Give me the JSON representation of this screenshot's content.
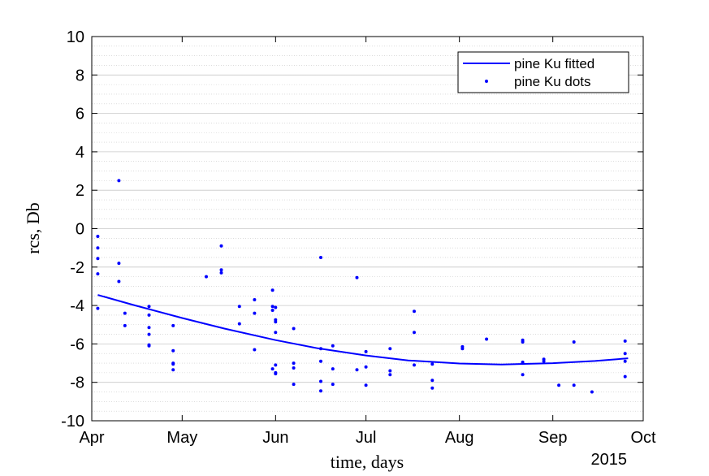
{
  "chart_data": {
    "type": "scatter",
    "xlabel": "time, days",
    "ylabel": "rcs, Db",
    "year_label": "2015",
    "x_ticks": [
      "Apr",
      "May",
      "Jun",
      "Jul",
      "Aug",
      "Sep",
      "Oct"
    ],
    "x_tick_dates": [
      "2015-04-01",
      "2015-05-01",
      "2015-06-01",
      "2015-07-01",
      "2015-08-01",
      "2015-09-01",
      "2015-10-01"
    ],
    "xlim": [
      "2015-04-01",
      "2015-10-01"
    ],
    "y_ticks": [
      "10",
      "8",
      "6",
      "4",
      "2",
      "0",
      "-2",
      "-4",
      "-6",
      "-8",
      "-10"
    ],
    "ylim": [
      -10,
      10
    ],
    "grid": "major and minor on y-axis",
    "legend_position": "top-right",
    "colors": {
      "series": "#0000ff",
      "axis": "#000000",
      "grid": "#c8c8c8"
    },
    "series": [
      {
        "name": "pine Ku fitted",
        "kind": "line",
        "x": [
          "2015-04-03",
          "2015-04-15",
          "2015-05-01",
          "2015-05-15",
          "2015-06-01",
          "2015-06-15",
          "2015-07-01",
          "2015-07-15",
          "2015-08-01",
          "2015-08-15",
          "2015-09-01",
          "2015-09-15",
          "2015-09-26"
        ],
        "y": [
          -3.45,
          -3.98,
          -4.65,
          -5.2,
          -5.8,
          -6.23,
          -6.6,
          -6.86,
          -7.02,
          -7.07,
          -7.0,
          -6.89,
          -6.75
        ]
      },
      {
        "name": "pine Ku dots",
        "kind": "scatter",
        "x": [
          "2015-04-03",
          "2015-04-03",
          "2015-04-03",
          "2015-04-03",
          "2015-04-03",
          "2015-04-10",
          "2015-04-10",
          "2015-04-10",
          "2015-04-12",
          "2015-04-12",
          "2015-04-20",
          "2015-04-20",
          "2015-04-20",
          "2015-04-20",
          "2015-04-20",
          "2015-04-20",
          "2015-04-28",
          "2015-04-28",
          "2015-04-28",
          "2015-04-28",
          "2015-04-28",
          "2015-05-09",
          "2015-05-14",
          "2015-05-14",
          "2015-05-14",
          "2015-05-20",
          "2015-05-20",
          "2015-05-25",
          "2015-05-25",
          "2015-05-25",
          "2015-05-31",
          "2015-05-31",
          "2015-05-31",
          "2015-05-31",
          "2015-06-01",
          "2015-06-01",
          "2015-06-01",
          "2015-06-01",
          "2015-06-01",
          "2015-06-01",
          "2015-06-01",
          "2015-06-07",
          "2015-06-07",
          "2015-06-07",
          "2015-06-07",
          "2015-06-16",
          "2015-06-16",
          "2015-06-16",
          "2015-06-16",
          "2015-06-16",
          "2015-06-20",
          "2015-06-20",
          "2015-06-20",
          "2015-06-28",
          "2015-06-28",
          "2015-07-01",
          "2015-07-01",
          "2015-07-01",
          "2015-07-09",
          "2015-07-09",
          "2015-07-09",
          "2015-07-17",
          "2015-07-17",
          "2015-07-17",
          "2015-07-23",
          "2015-07-23",
          "2015-07-23",
          "2015-08-02",
          "2015-08-02",
          "2015-08-10",
          "2015-08-22",
          "2015-08-22",
          "2015-08-22",
          "2015-08-22",
          "2015-08-22",
          "2015-08-29",
          "2015-08-29",
          "2015-09-03",
          "2015-09-08",
          "2015-09-08",
          "2015-09-14",
          "2015-09-25",
          "2015-09-25",
          "2015-09-25",
          "2015-09-25"
        ],
        "y": [
          -0.4,
          -1.0,
          -1.55,
          -2.35,
          -4.15,
          2.5,
          -1.8,
          -2.75,
          -4.4,
          -5.05,
          -4.05,
          -4.5,
          -5.15,
          -5.5,
          -6.05,
          -6.1,
          -5.05,
          -6.35,
          -7.0,
          -7.05,
          -7.35,
          -2.5,
          -0.9,
          -2.15,
          -2.3,
          -4.05,
          -4.95,
          -3.7,
          -4.4,
          -6.3,
          -3.2,
          -4.05,
          -4.25,
          -7.3,
          -4.1,
          -4.75,
          -4.85,
          -5.4,
          -7.1,
          -7.5,
          -7.55,
          -5.2,
          -7.0,
          -7.25,
          -8.1,
          -1.5,
          -6.25,
          -6.9,
          -7.95,
          -8.45,
          -6.1,
          -7.3,
          -8.1,
          -2.55,
          -7.35,
          -6.4,
          -7.2,
          -8.15,
          -6.25,
          -7.4,
          -7.6,
          -4.3,
          -5.4,
          -7.1,
          -7.05,
          -7.9,
          -8.3,
          -6.15,
          -6.25,
          -5.75,
          -5.8,
          -5.9,
          -6.95,
          -7.0,
          -7.6,
          -6.8,
          -6.9,
          -8.15,
          -5.9,
          -8.15,
          -8.5,
          -5.85,
          -6.5,
          -6.9,
          -7.7
        ]
      }
    ]
  }
}
